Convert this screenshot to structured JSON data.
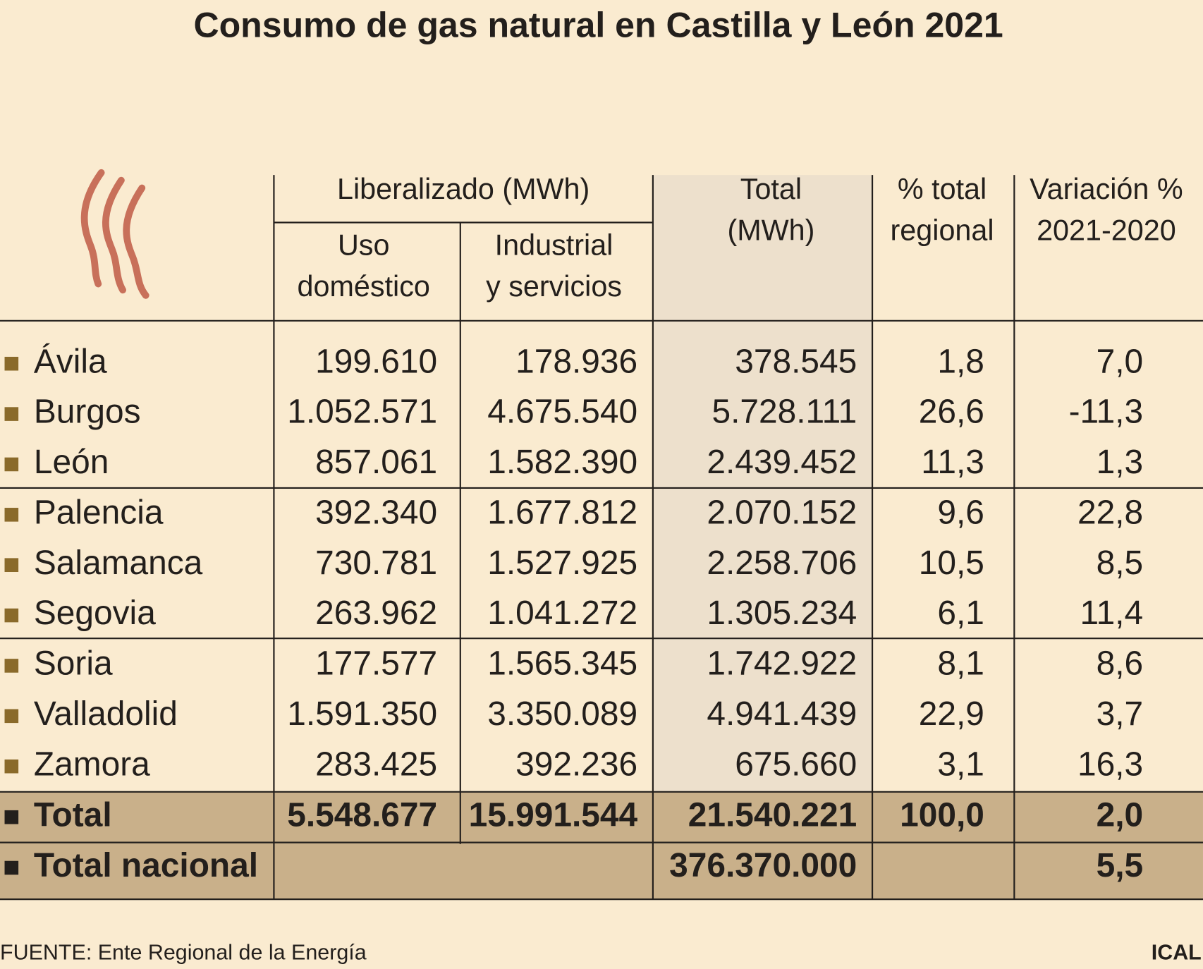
{
  "title": "Consumo de gas natural en Castilla y León 2021",
  "table": {
    "header": {
      "group": "Liberalizado (MWh)",
      "columns": [
        [
          "Uso",
          "doméstico"
        ],
        [
          "Industrial",
          "y servicios"
        ],
        [
          "Total",
          "(MWh)"
        ],
        [
          "% total",
          "regional"
        ],
        [
          "Variación %",
          "2021-2020"
        ]
      ]
    },
    "rows": [
      {
        "name": "Ávila",
        "values": [
          "199.610",
          "178.936",
          "378.545",
          "1,8",
          "7,0"
        ]
      },
      {
        "name": "Burgos",
        "values": [
          "1.052.571",
          "4.675.540",
          "5.728.111",
          "26,6",
          "-11,3"
        ]
      },
      {
        "name": "León",
        "values": [
          "857.061",
          "1.582.390",
          "2.439.452",
          "11,3",
          "1,3"
        ]
      },
      {
        "name": "Palencia",
        "values": [
          "392.340",
          "1.677.812",
          "2.070.152",
          "9,6",
          "22,8"
        ]
      },
      {
        "name": "Salamanca",
        "values": [
          "730.781",
          "1.527.925",
          "2.258.706",
          "10,5",
          "8,5"
        ]
      },
      {
        "name": "Segovia",
        "values": [
          "263.962",
          "1.041.272",
          "1.305.234",
          "6,1",
          "11,4"
        ]
      },
      {
        "name": "Soria",
        "values": [
          "177.577",
          "1.565.345",
          "1.742.922",
          "8,1",
          "8,6"
        ]
      },
      {
        "name": "Valladolid",
        "values": [
          "1.591.350",
          "3.350.089",
          "4.941.439",
          "22,9",
          "3,7"
        ]
      },
      {
        "name": "Zamora",
        "values": [
          "283.425",
          "392.236",
          "675.660",
          "3,1",
          "16,3"
        ]
      }
    ],
    "total": {
      "name": "Total",
      "values": [
        "5.548.677",
        "15.991.544",
        "21.540.221",
        "100,0",
        "2,0"
      ]
    },
    "national": {
      "name": "Total nacional",
      "total": "376.370.000",
      "variation": "5,5"
    }
  },
  "source": "FUENTE: Ente Regional de la Energía",
  "credit": "ICAL"
}
